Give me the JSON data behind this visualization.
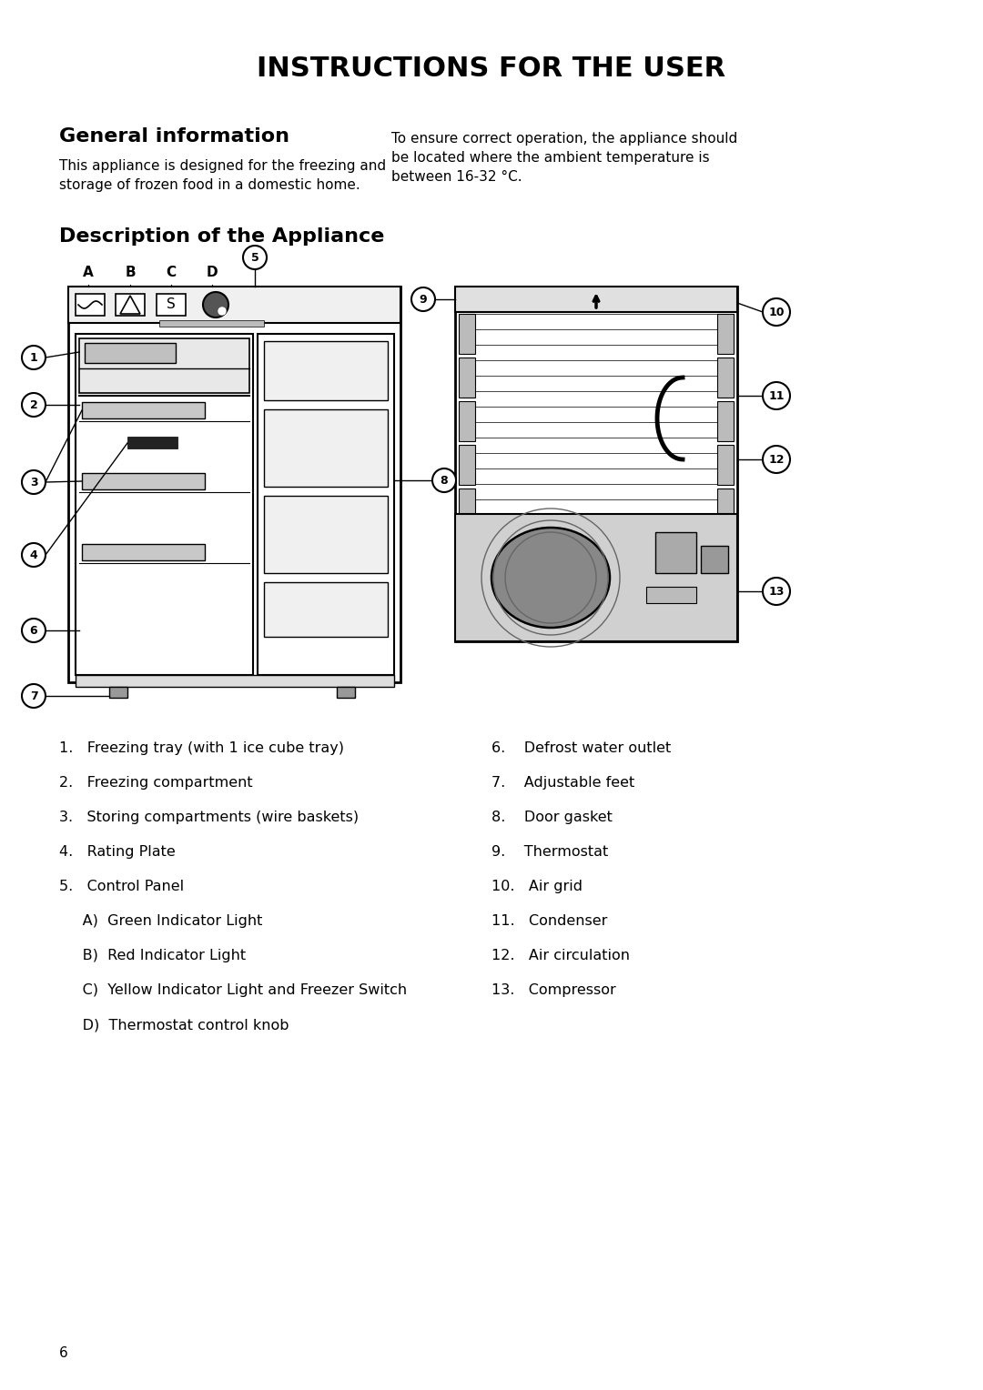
{
  "title": "INSTRUCTIONS FOR THE USER",
  "section1_title": "General information",
  "section1_left": "This appliance is designed for the freezing and\nstorage of frozen food in a domestic home.",
  "section1_right": "To ensure correct operation, the appliance should\nbe located where the ambient temperature is\nbetween 16-32 °C.",
  "section2_title": "Description of the Appliance",
  "list_left": [
    "1.   Freezing tray (with 1 ice cube tray)",
    "2.   Freezing compartment",
    "3.   Storing compartments (wire baskets)",
    "4.   Rating Plate",
    "5.   Control Panel",
    "     A)  Green Indicator Light",
    "     B)  Red Indicator Light",
    "     C)  Yellow Indicator Light and Freezer Switch",
    "     D)  Thermostat control knob"
  ],
  "list_right": [
    "6.    Defrost water outlet",
    "7.    Adjustable feet",
    "8.    Door gasket",
    "9.    Thermostat",
    "10.   Air grid",
    "11.   Condenser",
    "12.   Air circulation",
    "13.   Compressor"
  ],
  "page_number": "6",
  "bg_color": "#ffffff",
  "text_color": "#000000"
}
